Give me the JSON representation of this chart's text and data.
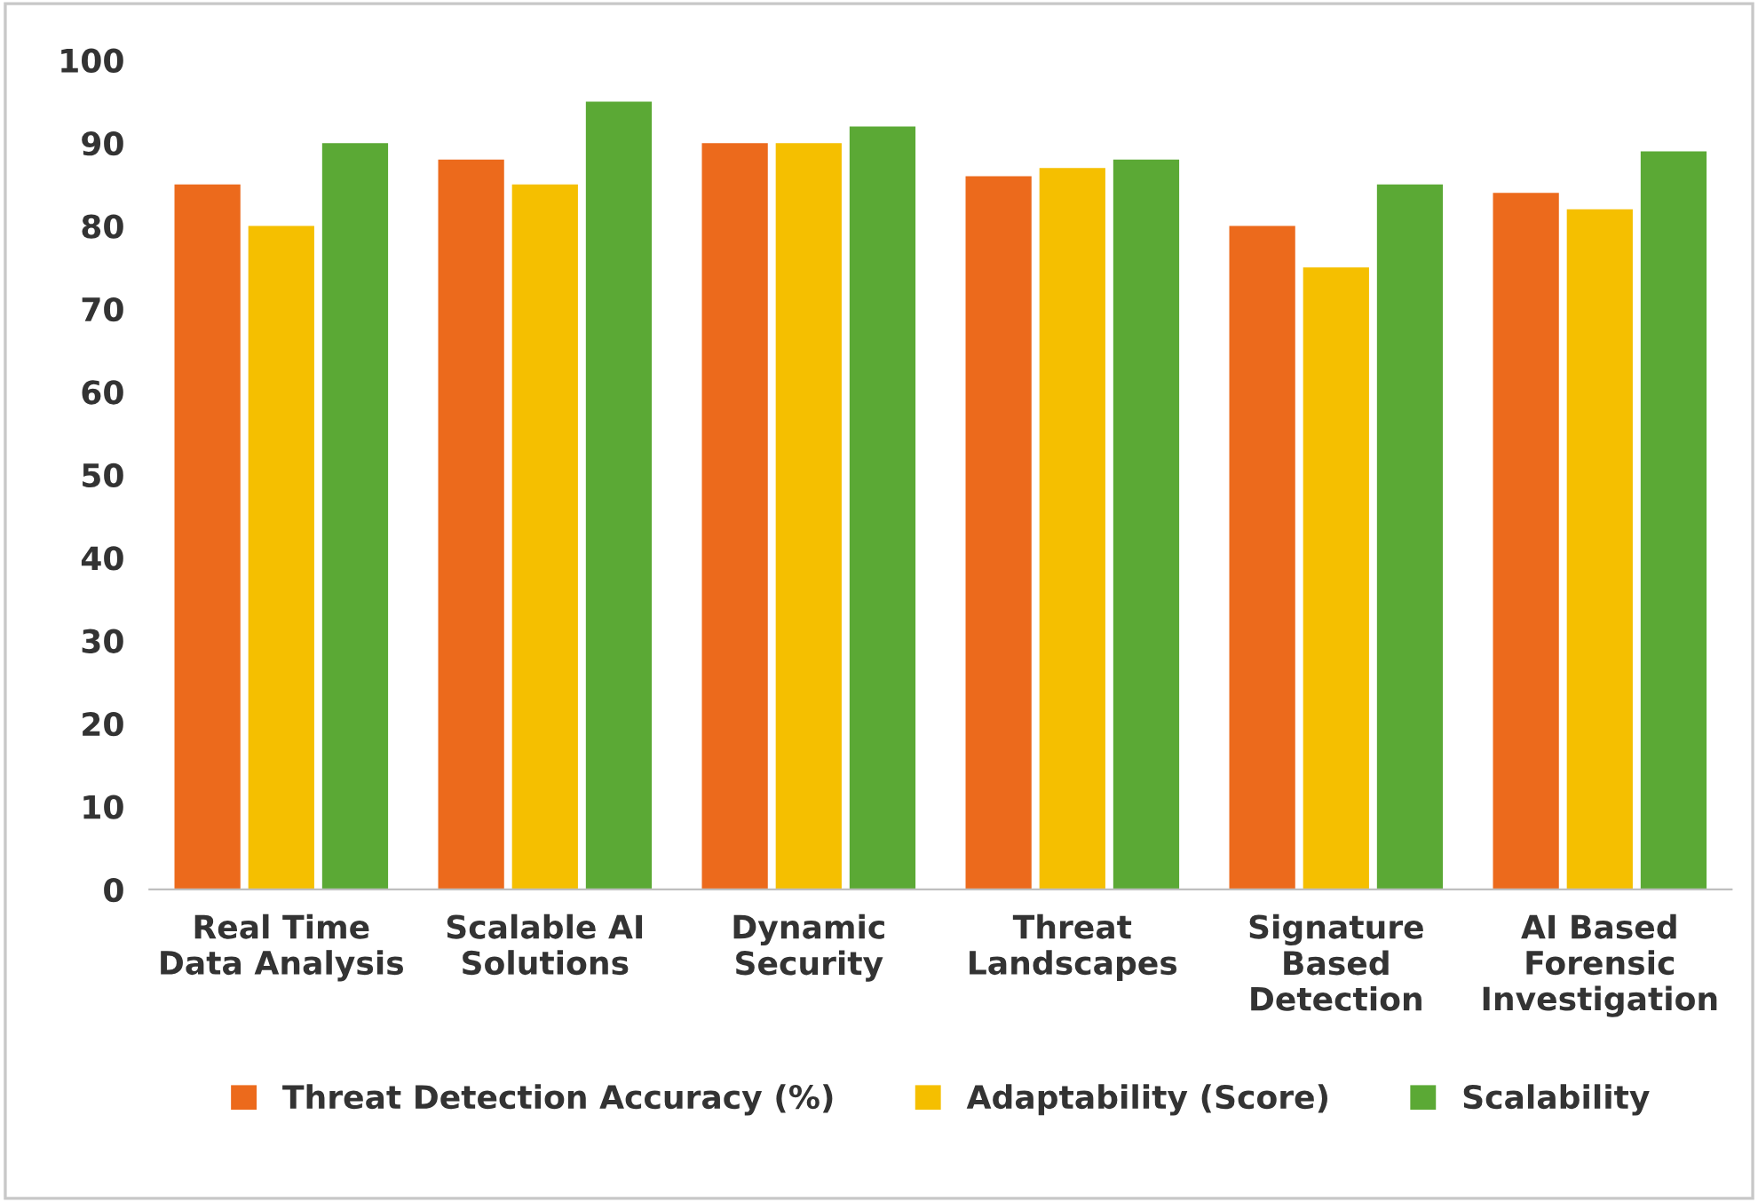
{
  "chart_data": {
    "type": "bar",
    "categories": [
      "Real Time\nData Analysis",
      "Scalable AI\nSolutions",
      "Dynamic\nSecurity",
      "Threat\nLandscapes",
      "Signature\nBased\nDetection",
      "AI Based\nForensic\nInvestigation"
    ],
    "series": [
      {
        "name": "Threat Detection Accuracy (%)",
        "color": "#ec6a1c",
        "values": [
          85,
          88,
          90,
          86,
          80,
          84
        ]
      },
      {
        "name": "Adaptability (Score)",
        "color": "#f5bf00",
        "values": [
          80,
          85,
          90,
          87,
          75,
          82
        ]
      },
      {
        "name": "Scalability",
        "color": "#5ba935",
        "values": [
          90,
          95,
          92,
          88,
          85,
          89
        ]
      }
    ],
    "ylim": [
      0,
      100
    ],
    "yticks": [
      0,
      10,
      20,
      30,
      40,
      50,
      60,
      70,
      80,
      90,
      100
    ],
    "grid": false,
    "legend": "bottom"
  }
}
